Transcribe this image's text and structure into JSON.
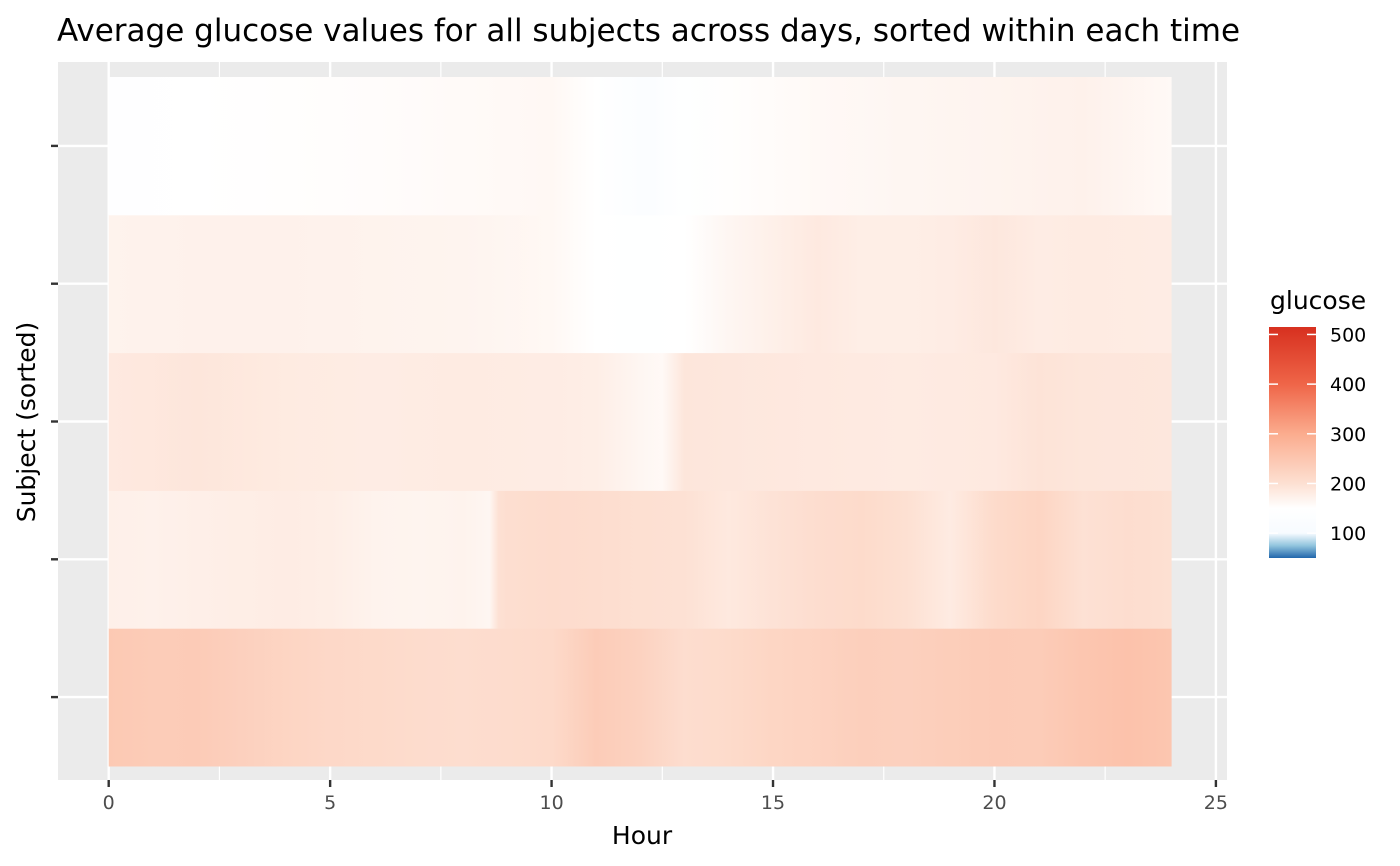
{
  "chart_data": {
    "type": "heatmap",
    "title": "Average glucose values for all subjects across days, sorted within each time",
    "xlabel": "Hour",
    "ylabel": "Subject (sorted)",
    "xlim": [
      -1,
      25
    ],
    "x_ticks": [
      0,
      5,
      10,
      15,
      20,
      25
    ],
    "x_tick_labels": [
      "0",
      "5",
      "10",
      "15",
      "20",
      "25"
    ],
    "x_range": [
      0,
      24
    ],
    "y_rows": 5,
    "rows_bottom_to_top": [
      {
        "hours": [
          0,
          1,
          2,
          3,
          4,
          5,
          6,
          7,
          8,
          9,
          10,
          11,
          12,
          13,
          14,
          15,
          16,
          17,
          18,
          19,
          20,
          21,
          22,
          23,
          24
        ],
        "glucose": [
          245,
          238,
          240,
          230,
          222,
          215,
          212,
          208,
          205,
          208,
          212,
          238,
          226,
          205,
          210,
          220,
          225,
          232,
          230,
          235,
          240,
          238,
          250,
          258,
          250
        ]
      },
      {
        "hours": [
          0,
          1,
          2,
          3,
          4,
          5,
          6,
          7,
          8,
          8.6,
          8.8,
          9,
          10,
          11,
          12,
          13,
          14,
          15,
          16,
          17,
          18,
          19,
          20,
          21,
          22,
          23,
          24
        ],
        "glucose": [
          175,
          172,
          176,
          178,
          180,
          178,
          170,
          168,
          170,
          165,
          198,
          203,
          208,
          205,
          200,
          198,
          186,
          196,
          205,
          210,
          200,
          182,
          210,
          222,
          198,
          205,
          200
        ]
      },
      {
        "hours": [
          0,
          2,
          4,
          6,
          8,
          10,
          11,
          12,
          12.5,
          13,
          14,
          16,
          18,
          20,
          21,
          22,
          24
        ],
        "glucose": [
          185,
          190,
          183,
          180,
          182,
          180,
          178,
          165,
          160,
          190,
          188,
          185,
          182,
          185,
          195,
          190,
          188
        ]
      },
      {
        "hours": [
          0,
          2,
          4,
          6,
          8,
          10,
          11,
          12,
          13,
          14,
          15,
          16,
          17,
          18,
          19,
          20,
          21,
          22,
          24
        ],
        "glucose": [
          170,
          172,
          172,
          170,
          168,
          162,
          148,
          145,
          150,
          165,
          175,
          185,
          178,
          178,
          180,
          188,
          180,
          182,
          180
        ]
      },
      {
        "hours": [
          0,
          2,
          4,
          6,
          8,
          10,
          11,
          12,
          12.3,
          12.6,
          13,
          14,
          16,
          18,
          20,
          22,
          24
        ],
        "glucose": [
          142,
          148,
          152,
          155,
          158,
          162,
          150,
          128,
          122,
          138,
          145,
          152,
          160,
          165,
          168,
          172,
          160
        ]
      }
    ],
    "legend": {
      "title": "glucose",
      "position": "right",
      "ticks": [
        100,
        200,
        300,
        400,
        500
      ],
      "tick_labels": [
        "100",
        "200",
        "300",
        "400",
        "500"
      ],
      "range": [
        50,
        515
      ],
      "color_stops": [
        {
          "value": 50,
          "color": "#2166ac"
        },
        {
          "value": 75,
          "color": "#92c5de"
        },
        {
          "value": 100,
          "color": "#f7fbff"
        },
        {
          "value": 150,
          "color": "#ffffff"
        },
        {
          "value": 200,
          "color": "#fde0d2"
        },
        {
          "value": 300,
          "color": "#fbac8e"
        },
        {
          "value": 400,
          "color": "#ef6548"
        },
        {
          "value": 515,
          "color": "#d7301f"
        }
      ]
    },
    "panel_background": "#ebebeb",
    "grid": true,
    "grid_color": "#ffffff"
  }
}
